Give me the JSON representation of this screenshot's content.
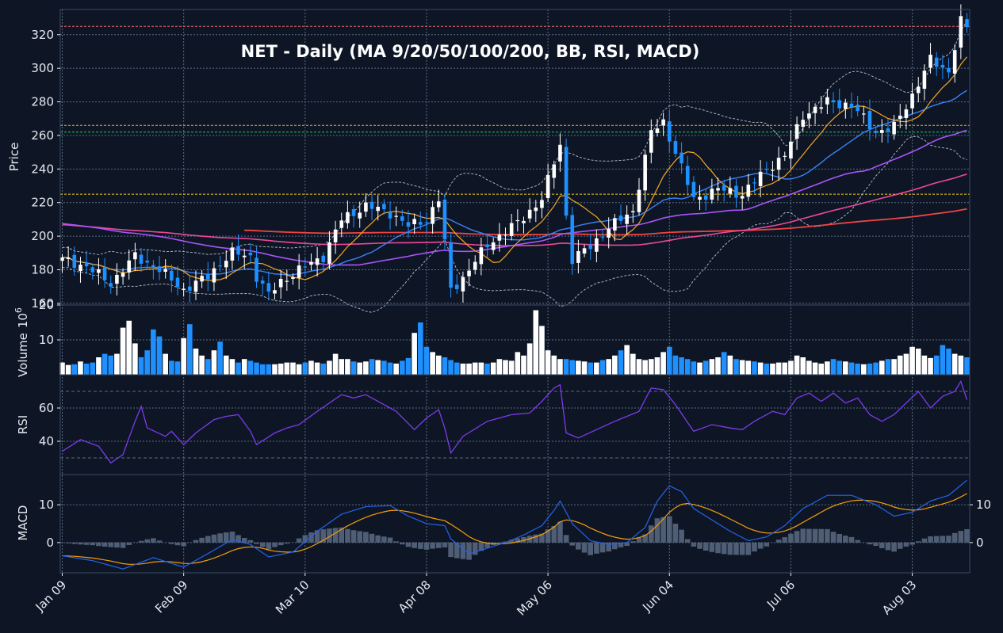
{
  "colors": {
    "background": "#0e1626",
    "panel_border": "#3a4a62",
    "grid": "#5b6b82",
    "candle_up": "#ffffff",
    "candle_down": "#1e90ff",
    "ma9": "#f5a623",
    "ma20": "#3b82f6",
    "ma50": "#a855f7",
    "ma100": "#ec4899",
    "ma200": "#ef4444",
    "bollinger": "#b8c0cc",
    "rsi": "#7c3aed",
    "macd": "#2563eb",
    "signal": "#f59e0b",
    "histogram": "#5b6b82",
    "level_red": "#e8656b",
    "level_orange": "#f5a623",
    "level_green": "#22c55e",
    "level_yellow": "#facc15"
  },
  "chart_data": {
    "type": "candlestick",
    "title": "NET  -  Daily  (MA 9/20/50/100/200, BB, RSI, MACD)",
    "x_tick_labels": [
      "Jan 09",
      "Feb 09",
      "Mar 10",
      "Apr 08",
      "May 06",
      "Jun 04",
      "Jul 06",
      "Aug 03"
    ],
    "x_tick_indices": [
      0,
      20,
      40,
      60,
      80,
      100,
      120,
      140
    ],
    "grid": true,
    "panels": {
      "price": {
        "ylabel": "Price",
        "ylim": [
          159,
          335
        ],
        "yticks": [
          160,
          180,
          200,
          220,
          240,
          260,
          280,
          300,
          320
        ],
        "horizontal_levels": [
          {
            "value": 325,
            "color": "level_red"
          },
          {
            "value": 266,
            "color": "level_orange"
          },
          {
            "value": 262,
            "color": "level_green"
          },
          {
            "value": 225,
            "color": "level_yellow"
          }
        ],
        "overlays": [
          "MA 9",
          "MA 20",
          "MA 50",
          "MA 100",
          "MA 200",
          "BB"
        ]
      },
      "volume": {
        "ylabel": "Volume",
        "ylabel_exponent": "6",
        "ylabel_exponent_base": "10",
        "ylim": [
          0,
          20
        ],
        "yticks": [
          10,
          20
        ],
        "unit_multiplier": 1000000
      },
      "rsi": {
        "ylabel": "RSI",
        "ylim": [
          20,
          80
        ],
        "yticks": [
          40,
          60
        ],
        "reference_lines": [
          70,
          30
        ]
      },
      "macd": {
        "ylabel": "MACD",
        "ylim": [
          -8,
          18
        ],
        "yticks_left": [
          0,
          10
        ],
        "yticks_right": [
          0,
          10
        ]
      }
    },
    "close_anchors": [
      [
        0,
        186
      ],
      [
        4,
        182
      ],
      [
        8,
        172
      ],
      [
        12,
        188
      ],
      [
        16,
        180
      ],
      [
        20,
        168
      ],
      [
        24,
        176
      ],
      [
        26,
        184
      ],
      [
        28,
        190
      ],
      [
        31,
        188
      ],
      [
        32,
        176
      ],
      [
        34,
        165
      ],
      [
        36,
        173
      ],
      [
        40,
        182
      ],
      [
        43,
        188
      ],
      [
        46,
        210
      ],
      [
        50,
        218
      ],
      [
        54,
        214
      ],
      [
        57,
        206
      ],
      [
        60,
        210
      ],
      [
        62,
        222
      ],
      [
        63,
        196
      ],
      [
        64,
        168
      ],
      [
        66,
        175
      ],
      [
        70,
        195
      ],
      [
        75,
        208
      ],
      [
        79,
        222
      ],
      [
        82,
        255
      ],
      [
        83,
        212
      ],
      [
        84,
        186
      ],
      [
        87,
        194
      ],
      [
        90,
        205
      ],
      [
        94,
        215
      ],
      [
        97,
        262
      ],
      [
        99,
        268
      ],
      [
        101,
        250
      ],
      [
        104,
        222
      ],
      [
        108,
        228
      ],
      [
        112,
        225
      ],
      [
        116,
        240
      ],
      [
        119,
        248
      ],
      [
        122,
        272
      ],
      [
        126,
        280
      ],
      [
        130,
        278
      ],
      [
        134,
        262
      ],
      [
        137,
        265
      ],
      [
        140,
        284
      ],
      [
        143,
        305
      ],
      [
        146,
        298
      ],
      [
        148,
        328
      ],
      [
        149,
        324
      ]
    ],
    "volume_millions": [
      3.5,
      2.8,
      3,
      3.8,
      3.2,
      3.5,
      5,
      6,
      5.5,
      6,
      13.5,
      15.5,
      9,
      5,
      7,
      13,
      11,
      6,
      4,
      3.8,
      10.5,
      14.5,
      7.5,
      5.5,
      4.5,
      7,
      9.5,
      5.5,
      4.5,
      3.5,
      4.5,
      4,
      3.5,
      3,
      3,
      3,
      3.2,
      3.5,
      3.5,
      3,
      3.5,
      4,
      3.5,
      3.2,
      4,
      6,
      4.5,
      4.5,
      3.8,
      3.5,
      3.8,
      4.5,
      4.2,
      4,
      3.5,
      3.2,
      4,
      4.8,
      12,
      15,
      8,
      6.5,
      5.5,
      5,
      4.2,
      3.5,
      3.2,
      3.2,
      3.5,
      3.5,
      3.2,
      3.5,
      4.5,
      4.2,
      4,
      6.5,
      5.5,
      9,
      18.5,
      14,
      7,
      5.5,
      4.5,
      4.5,
      4.2,
      4,
      3.8,
      3.5,
      3.5,
      4.2,
      4.5,
      5.5,
      7,
      8.5,
      6,
      4.5,
      4.2,
      4.5,
      5,
      6.5,
      8,
      5.5,
      5,
      4.5,
      3.8,
      3.5,
      4,
      4.5,
      5,
      6.5,
      5.5,
      4.5,
      4.2,
      4,
      3.8,
      3.5,
      3.2,
      3.2,
      3.5,
      3.5,
      4,
      5.5,
      5,
      4,
      3.5,
      3.2,
      3.8,
      4.5,
      4,
      3.8,
      3.5,
      3.2,
      3,
      3.2,
      3.5,
      4,
      4.5,
      4.5,
      5.5,
      6,
      8,
      7.5,
      5.5,
      4.8,
      5.5,
      8.5,
      7.5,
      6,
      5.5,
      5
    ],
    "macd_anchors": [
      [
        0,
        -3.5
      ],
      [
        5,
        -4.8
      ],
      [
        10,
        -7
      ],
      [
        15,
        -4
      ],
      [
        20,
        -6.5
      ],
      [
        25,
        -2
      ],
      [
        28,
        0.8
      ],
      [
        31,
        -0.5
      ],
      [
        34,
        -3.8
      ],
      [
        38,
        -2.5
      ],
      [
        42,
        3
      ],
      [
        46,
        7.5
      ],
      [
        50,
        9.5
      ],
      [
        54,
        9.8
      ],
      [
        57,
        7
      ],
      [
        60,
        5
      ],
      [
        63,
        4.5
      ],
      [
        64,
        1
      ],
      [
        67,
        -3
      ],
      [
        70,
        -1.5
      ],
      [
        73,
        0
      ],
      [
        76,
        2
      ],
      [
        79,
        4.5
      ],
      [
        81,
        8.5
      ],
      [
        82,
        11
      ],
      [
        84,
        5
      ],
      [
        87,
        0.5
      ],
      [
        90,
        -0.5
      ],
      [
        93,
        0
      ],
      [
        96,
        4
      ],
      [
        98,
        11
      ],
      [
        100,
        15
      ],
      [
        102,
        13.5
      ],
      [
        104,
        9
      ],
      [
        107,
        6
      ],
      [
        110,
        3
      ],
      [
        113,
        0.5
      ],
      [
        116,
        1.5
      ],
      [
        119,
        4.5
      ],
      [
        122,
        9
      ],
      [
        126,
        12.5
      ],
      [
        130,
        12.5
      ],
      [
        134,
        10
      ],
      [
        137,
        7
      ],
      [
        140,
        8
      ],
      [
        143,
        11
      ],
      [
        146,
        12.5
      ],
      [
        149,
        16.5
      ]
    ],
    "rsi_anchors": [
      [
        0,
        34
      ],
      [
        3,
        41
      ],
      [
        6,
        37
      ],
      [
        8,
        27
      ],
      [
        10,
        32
      ],
      [
        12,
        52
      ],
      [
        13,
        61
      ],
      [
        14,
        48
      ],
      [
        17,
        43
      ],
      [
        18,
        46
      ],
      [
        20,
        38
      ],
      [
        22,
        45
      ],
      [
        25,
        53
      ],
      [
        27,
        55
      ],
      [
        29,
        56
      ],
      [
        31,
        46
      ],
      [
        32,
        38
      ],
      [
        35,
        45
      ],
      [
        37,
        48
      ],
      [
        39,
        50
      ],
      [
        42,
        58
      ],
      [
        46,
        68
      ],
      [
        48,
        66
      ],
      [
        50,
        68
      ],
      [
        52,
        64
      ],
      [
        55,
        58
      ],
      [
        58,
        47
      ],
      [
        60,
        54
      ],
      [
        62,
        59
      ],
      [
        63,
        48
      ],
      [
        64,
        33
      ],
      [
        66,
        43
      ],
      [
        70,
        52
      ],
      [
        74,
        56
      ],
      [
        77,
        57
      ],
      [
        79,
        64
      ],
      [
        81,
        72
      ],
      [
        82,
        74
      ],
      [
        83,
        45
      ],
      [
        85,
        42
      ],
      [
        88,
        47
      ],
      [
        91,
        52
      ],
      [
        93,
        55
      ],
      [
        95,
        58
      ],
      [
        97,
        72
      ],
      [
        99,
        71
      ],
      [
        101,
        62
      ],
      [
        104,
        46
      ],
      [
        107,
        50
      ],
      [
        110,
        48
      ],
      [
        112,
        47
      ],
      [
        114,
        52
      ],
      [
        117,
        58
      ],
      [
        119,
        56
      ],
      [
        121,
        66
      ],
      [
        123,
        69
      ],
      [
        125,
        64
      ],
      [
        127,
        69
      ],
      [
        129,
        63
      ],
      [
        131,
        66
      ],
      [
        133,
        56
      ],
      [
        135,
        52
      ],
      [
        137,
        56
      ],
      [
        139,
        63
      ],
      [
        141,
        70
      ],
      [
        143,
        60
      ],
      [
        145,
        67
      ],
      [
        147,
        70
      ],
      [
        148,
        76
      ],
      [
        149,
        65
      ]
    ]
  }
}
